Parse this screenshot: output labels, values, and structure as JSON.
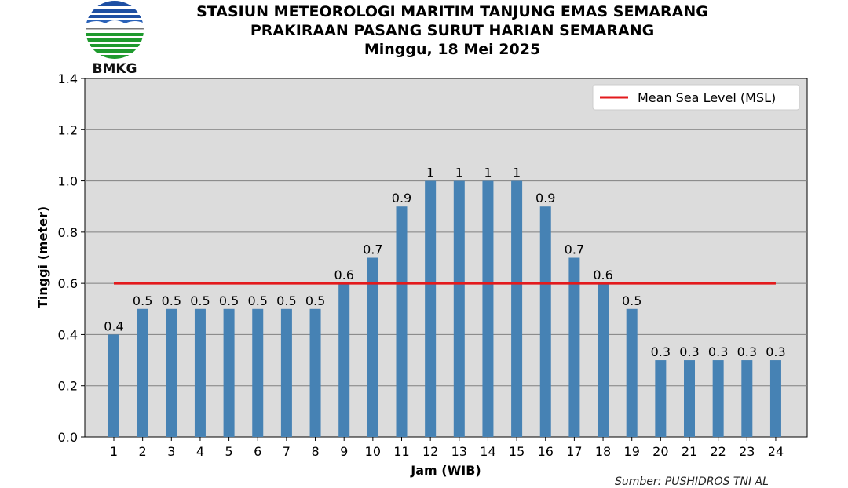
{
  "header": {
    "logo_text": "BMKG",
    "title_line1": "STASIUN METEOROLOGI MARITIM TANJUNG EMAS SEMARANG",
    "title_line2": "PRAKIRAAN PASANG SURUT HARIAN SEMARANG",
    "title_line3": "Minggu, 18 Mei 2025"
  },
  "source": "Sumber: PUSHIDROS TNI AL",
  "colors": {
    "bar": "#4682b4",
    "msl": "#e31a1c",
    "plot_bg": "#dcdcdc",
    "grid": "#808080"
  },
  "chart_data": {
    "type": "bar",
    "xlabel": "Jam (WIB)",
    "ylabel": "Tinggi (meter)",
    "categories": [
      1,
      2,
      3,
      4,
      5,
      6,
      7,
      8,
      9,
      10,
      11,
      12,
      13,
      14,
      15,
      16,
      17,
      18,
      19,
      20,
      21,
      22,
      23,
      24
    ],
    "values": [
      0.4,
      0.5,
      0.5,
      0.5,
      0.5,
      0.5,
      0.5,
      0.5,
      0.6,
      0.7,
      0.9,
      1,
      1,
      1,
      1,
      0.9,
      0.7,
      0.6,
      0.5,
      0.3,
      0.3,
      0.3,
      0.3,
      0.3
    ],
    "data_labels": [
      "0.4",
      "0.5",
      "0.5",
      "0.5",
      "0.5",
      "0.5",
      "0.5",
      "0.5",
      "0.6",
      "0.7",
      "0.9",
      "1",
      "1",
      "1",
      "1",
      "0.9",
      "0.7",
      "0.6",
      "0.5",
      "0.3",
      "0.3",
      "0.3",
      "0.3",
      "0.3"
    ],
    "ylim": [
      0,
      1.4
    ],
    "yticks": [
      "0.0",
      "0.2",
      "0.4",
      "0.6",
      "0.8",
      "1.0",
      "1.2",
      "1.4"
    ],
    "lines": [
      {
        "name": "Mean Sea Level (MSL)",
        "y": 0.6,
        "x_range": [
          1,
          24
        ]
      }
    ],
    "grid": "horizontal",
    "legend": "top-right"
  }
}
